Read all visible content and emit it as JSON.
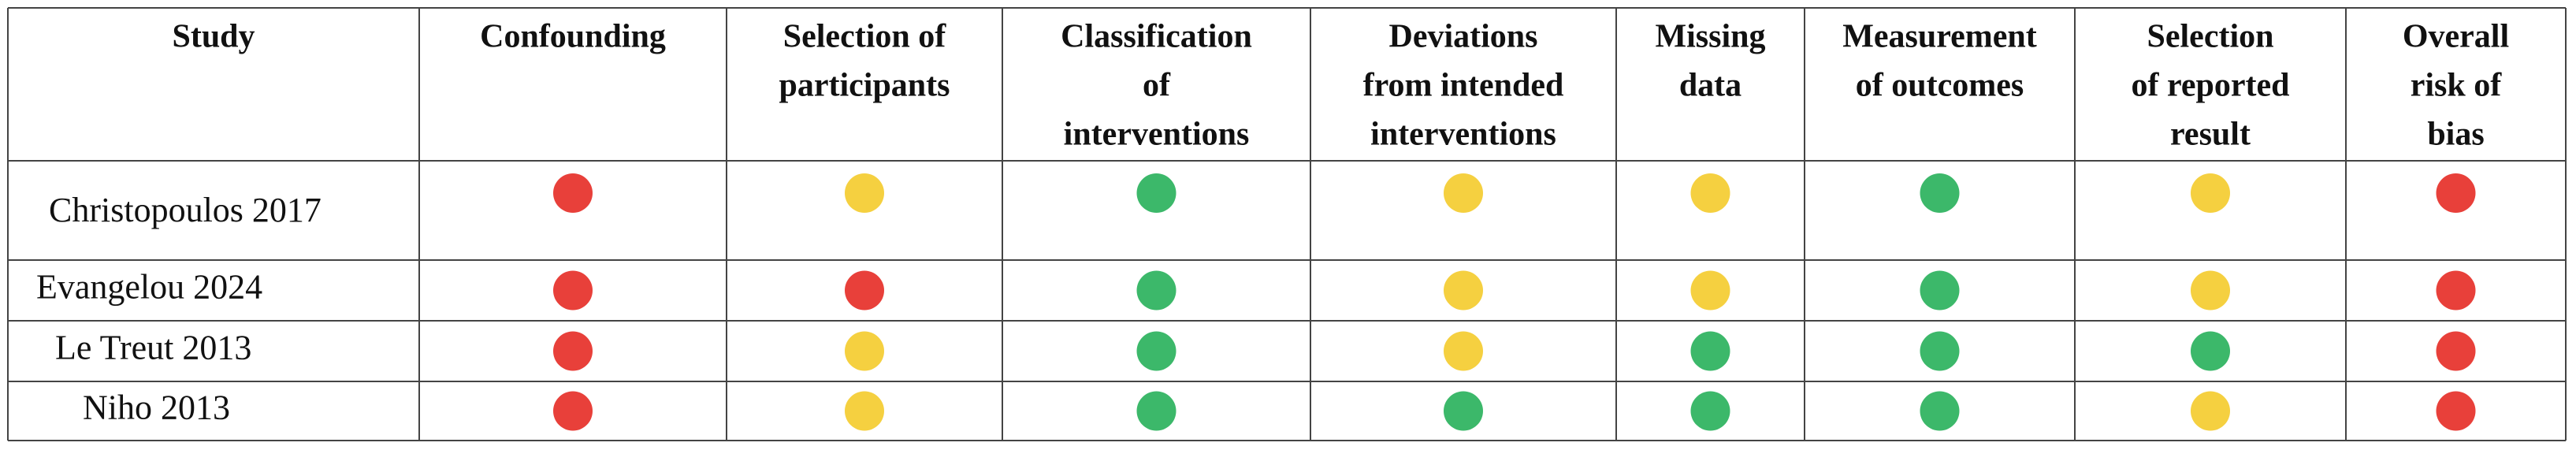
{
  "table": {
    "headers": [
      [
        "Study"
      ],
      [
        "Confounding"
      ],
      [
        "Selection of",
        "participants"
      ],
      [
        "Classification",
        "of",
        "interventions"
      ],
      [
        "Deviations",
        "from intended",
        "interventions"
      ],
      [
        "Missing",
        "data"
      ],
      [
        "Measurement",
        "of outcomes"
      ],
      [
        "Selection",
        "of reported",
        "result"
      ],
      [
        "Overall",
        "risk of",
        "bias"
      ]
    ],
    "rows": [
      {
        "study": "Christopoulos 2017",
        "cells": [
          "#e8403a",
          "#f5d040",
          "#3cb86a",
          "#f5d040",
          "#f5d040",
          "#3cb86a",
          "#f5d040",
          "#e8403a"
        ]
      },
      {
        "study": "Evangelou 2024",
        "cells": [
          "#e8403a",
          "#e8403a",
          "#3cb86a",
          "#f5d040",
          "#f5d040",
          "#3cb86a",
          "#f5d040",
          "#e8403a"
        ]
      },
      {
        "study": "Le Treut 2013",
        "cells": [
          "#e8403a",
          "#f5d040",
          "#3cb86a",
          "#f5d040",
          "#3cb86a",
          "#3cb86a",
          "#3cb86a",
          "#e8403a"
        ]
      },
      {
        "study": "Niho 2013",
        "cells": [
          "#e8403a",
          "#f5d040",
          "#3cb86a",
          "#3cb86a",
          "#3cb86a",
          "#3cb86a",
          "#f5d040",
          "#e8403a"
        ]
      }
    ]
  }
}
